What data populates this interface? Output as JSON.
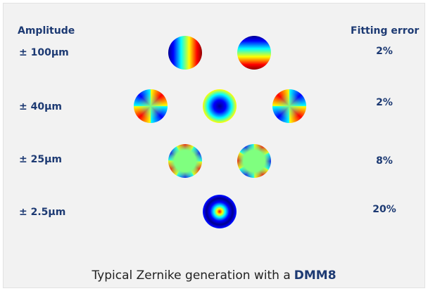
{
  "header": {
    "amplitude": "Amplitude",
    "fitting_error": "Fitting error"
  },
  "rows": [
    {
      "amplitude": "± 100µm",
      "fitting_error": "2%"
    },
    {
      "amplitude": "± 40µm",
      "fitting_error": "2%"
    },
    {
      "amplitude": "± 25µm",
      "fitting_error": "8%"
    },
    {
      "amplitude": "± 2.5µm",
      "fitting_error": "20%"
    }
  ],
  "caption": {
    "text": "Typical Zernike generation with a",
    "highlight": "DMM8"
  }
}
